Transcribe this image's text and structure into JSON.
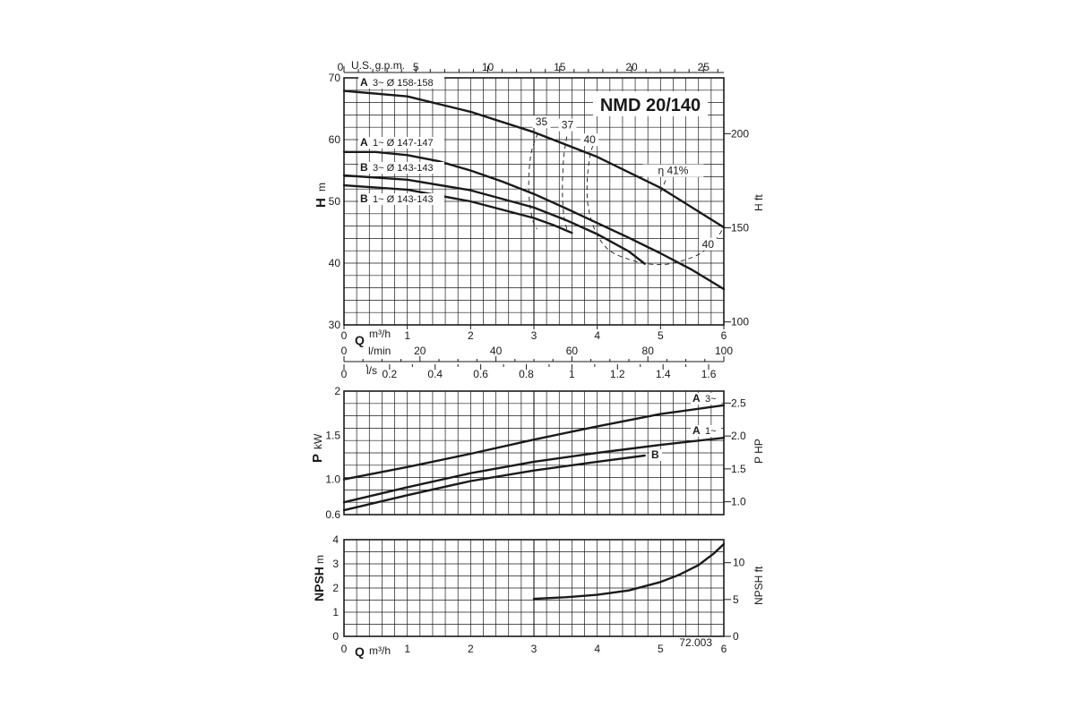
{
  "title": "NMD 20/140",
  "figure_id": "72.003",
  "chart_data": [
    {
      "id": "head",
      "type": "line",
      "title": "NMD 20/140",
      "xlabel": "Q m³/h",
      "ylabel_left": "H",
      "ylabel_left_unit": "m",
      "ylabel_right": "H ft",
      "xlim": [
        0,
        6
      ],
      "ylim": [
        30,
        70
      ],
      "grid": true,
      "y_ticks": [
        "30",
        "40",
        "50",
        "60",
        "70"
      ],
      "right_ticks": [
        {
          "value": 100,
          "label": "100"
        },
        {
          "value": 150,
          "label": "150"
        },
        {
          "value": 200,
          "label": "200"
        }
      ],
      "series": [
        {
          "name": "A 3~ Ø 158-158",
          "label_bold": "A",
          "label_text": "3~ Ø 158-158",
          "x": [
            0,
            1,
            2,
            3,
            4,
            5,
            6
          ],
          "y": [
            67.9,
            67.0,
            64.5,
            61.2,
            57.2,
            52.2,
            45.8
          ]
        },
        {
          "name": "A 1~ Ø 147-147",
          "label_bold": "A",
          "label_text": "1~ Ø 147-147",
          "x": [
            0,
            0.5,
            1,
            1.5,
            2,
            2.5,
            3,
            3.5,
            4,
            4.5,
            5,
            5.5,
            6
          ],
          "y": [
            58.0,
            58.0,
            57.5,
            56.5,
            55.0,
            53.2,
            51.2,
            48.9,
            46.5,
            44.1,
            41.6,
            38.9,
            35.8
          ]
        },
        {
          "name": "B 3~ Ø 143-143",
          "label_bold": "B",
          "label_text": "3~ Ø 143-143",
          "x": [
            0,
            1,
            2,
            3,
            3.5,
            4,
            4.5,
            4.75
          ],
          "y": [
            54.2,
            53.5,
            51.8,
            49.0,
            47.0,
            44.7,
            41.9,
            39.9
          ]
        },
        {
          "name": "B 1~ Ø 143-143",
          "label_bold": "B",
          "label_text": "1~ Ø 143-143",
          "x": [
            0,
            1,
            2,
            3,
            3.3,
            3.6
          ],
          "y": [
            52.6,
            51.9,
            50.0,
            47.3,
            46.2,
            44.9
          ]
        }
      ],
      "efficiency_label": "η 41%",
      "efficiency": [
        {
          "label": "35",
          "label_at": [
            3.12,
            62.3
          ],
          "points": [
            [
              3.06,
              61.0
            ],
            [
              2.96,
              58.0
            ],
            [
              2.92,
              54.0
            ],
            [
              2.93,
              50.0
            ],
            [
              2.98,
              47.0
            ],
            [
              3.05,
              45.5
            ]
          ]
        },
        {
          "label": "37",
          "label_at": [
            3.53,
            61.8
          ],
          "points": [
            [
              3.52,
              60.5
            ],
            [
              3.47,
              57.0
            ],
            [
              3.45,
              52.0
            ],
            [
              3.47,
              48.0
            ],
            [
              3.52,
              45.5
            ]
          ]
        },
        {
          "label": "40",
          "label_at": [
            3.88,
            59.4
          ],
          "points": [
            [
              3.93,
              59.0
            ],
            [
              3.88,
              57.0
            ],
            [
              3.84,
              53.0
            ],
            [
              3.86,
              49.0
            ],
            [
              3.98,
              45.0
            ],
            [
              4.2,
              42.0
            ],
            [
              4.6,
              40.3
            ],
            [
              4.9,
              39.8
            ],
            [
              5.2,
              40.0
            ],
            [
              5.6,
              41.4
            ],
            [
              5.85,
              43.6
            ],
            [
              5.97,
              45.3
            ]
          ]
        },
        {
          "label": "40",
          "label_at": [
            5.75,
            42.5
          ],
          "points": []
        },
        {
          "label": "41%",
          "label_at": [
            5.2,
            54.4
          ],
          "points": [
            [
              5.08,
              53.4
            ],
            [
              5.0,
              51.4
            ]
          ]
        }
      ],
      "top_axis": {
        "label": "U.S. g.p.m.",
        "ticks": [
          {
            "value": 0,
            "label": "0"
          },
          {
            "value": 5,
            "label": "5"
          },
          {
            "value": 10,
            "label": "10"
          },
          {
            "value": 15,
            "label": "15"
          },
          {
            "value": 20,
            "label": "20"
          },
          {
            "value": 25,
            "label": "25"
          }
        ]
      },
      "bottom_axes": [
        {
          "label": "m³/h",
          "q_label": "Q",
          "ticks": [
            {
              "value": 0,
              "label": "0"
            },
            {
              "value": 1,
              "label": "1"
            },
            {
              "value": 2,
              "label": "2"
            },
            {
              "value": 3,
              "label": "3"
            },
            {
              "value": 4,
              "label": "4"
            },
            {
              "value": 5,
              "label": "5"
            },
            {
              "value": 6,
              "label": "6"
            }
          ]
        },
        {
          "label": "l/min",
          "ticks": [
            {
              "value": 0,
              "label": "0"
            },
            {
              "value": 20,
              "label": "20"
            },
            {
              "value": 40,
              "label": "40"
            },
            {
              "value": 60,
              "label": "60"
            },
            {
              "value": 80,
              "label": "80"
            },
            {
              "value": 100,
              "label": "100"
            }
          ]
        },
        {
          "label": "l/s",
          "ticks": [
            {
              "value": 0,
              "label": "0"
            },
            {
              "value": 0.2,
              "label": "0.2"
            },
            {
              "value": 0.4,
              "label": "0.4"
            },
            {
              "value": 0.6,
              "label": "0.6"
            },
            {
              "value": 0.8,
              "label": "0.8"
            },
            {
              "value": 1.0,
              "label": "1"
            },
            {
              "value": 1.2,
              "label": "1.2"
            },
            {
              "value": 1.4,
              "label": "1.4"
            },
            {
              "value": 1.6,
              "label": "1.6"
            }
          ]
        }
      ]
    },
    {
      "id": "power",
      "type": "line",
      "xlabel": "Q m³/h",
      "ylabel_left": "P",
      "ylabel_left_unit": "kW",
      "ylabel_right": "P HP",
      "xlim": [
        0,
        6
      ],
      "ylim": [
        0.6,
        2.0
      ],
      "grid": true,
      "y_ticks": [
        {
          "value": 0.6,
          "label": "0.6"
        },
        {
          "value": 1.0,
          "label": "1.0"
        },
        {
          "value": 1.5,
          "label": "1.5"
        },
        {
          "value": 2.0,
          "label": "2"
        }
      ],
      "right_ticks": [
        {
          "value": 1.0,
          "label": "1.0"
        },
        {
          "value": 1.5,
          "label": "1.5"
        },
        {
          "value": 2.0,
          "label": "2.0"
        },
        {
          "value": 2.5,
          "label": "2.5"
        }
      ],
      "series": [
        {
          "name": "A 3~",
          "label_bold": "A",
          "label_text": "3~",
          "x": [
            0,
            1,
            2,
            3,
            4,
            5,
            6
          ],
          "y": [
            1.0,
            1.14,
            1.29,
            1.45,
            1.6,
            1.74,
            1.84
          ]
        },
        {
          "name": "A 1~",
          "label_bold": "A",
          "label_text": "1~",
          "x": [
            0,
            1,
            2,
            3,
            4,
            5,
            6
          ],
          "y": [
            0.74,
            0.91,
            1.07,
            1.2,
            1.3,
            1.39,
            1.47
          ]
        },
        {
          "name": "B",
          "label_bold": "B",
          "label_text": "",
          "x": [
            0,
            1,
            2,
            3,
            4,
            4.75
          ],
          "y": [
            0.65,
            0.82,
            0.98,
            1.1,
            1.2,
            1.27
          ]
        }
      ]
    },
    {
      "id": "npsh",
      "type": "line",
      "xlabel": "Q m³/h",
      "ylabel_left": "NPSH",
      "ylabel_left_unit": "m",
      "ylabel_right": "NPSH ft",
      "xlim": [
        0,
        6
      ],
      "ylim": [
        0,
        4
      ],
      "grid": true,
      "y_ticks": [
        "0",
        "1",
        "2",
        "3",
        "4"
      ],
      "right_ticks": [
        {
          "value": 0,
          "label": "0"
        },
        {
          "value": 5,
          "label": "5"
        },
        {
          "value": 10,
          "label": "10"
        }
      ],
      "x_ticks": [
        "0",
        "1",
        "2",
        "3",
        "4",
        "5",
        "6"
      ],
      "series": [
        {
          "name": "NPSH",
          "x": [
            3.0,
            3.5,
            4.0,
            4.5,
            5.0,
            5.3,
            5.6,
            5.85,
            6.0
          ],
          "y": [
            1.55,
            1.62,
            1.72,
            1.9,
            2.25,
            2.55,
            2.95,
            3.45,
            3.82
          ]
        }
      ]
    }
  ]
}
